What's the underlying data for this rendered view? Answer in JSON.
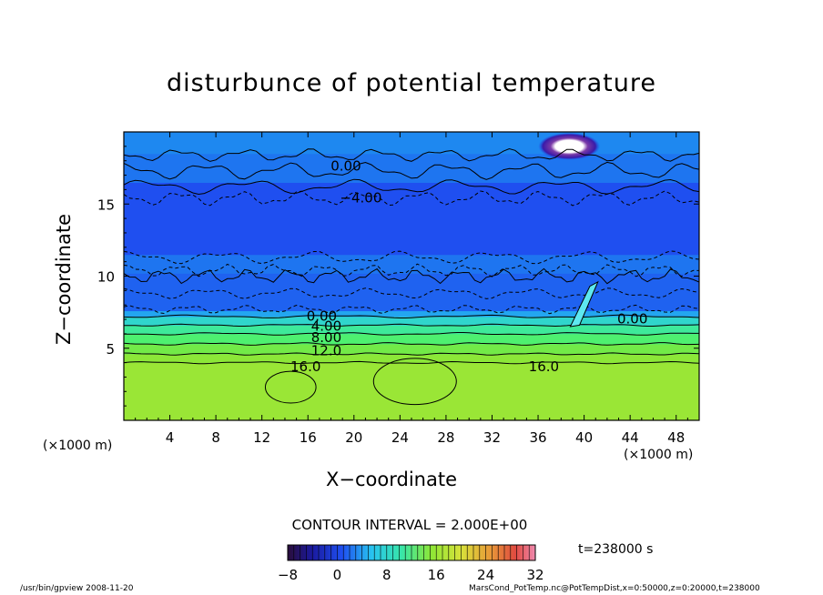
{
  "chart_data": {
    "type": "heatmap",
    "title": "disturbunce of potential temperature",
    "xlabel": "X−coordinate",
    "ylabel": "Z−coordinate",
    "x_unit": "(×1000 m)",
    "z_unit": "(×1000 m)",
    "xlim": [
      0,
      50
    ],
    "ylim": [
      0,
      20
    ],
    "x_ticks": [
      4,
      8,
      12,
      16,
      20,
      24,
      28,
      32,
      36,
      40,
      44,
      48
    ],
    "y_ticks": [
      5,
      10,
      15
    ],
    "contour_interval_text": "CONTOUR INTERVAL = 2.000E+00",
    "contour_labels": [
      {
        "text": "0.00",
        "x": 19.3,
        "z": 17.7
      },
      {
        "text": "−4.00",
        "x": 20.6,
        "z": 15.5
      },
      {
        "text": "0.00",
        "x": 17.2,
        "z": 7.3
      },
      {
        "text": "4.00",
        "x": 17.6,
        "z": 6.6
      },
      {
        "text": "8.00",
        "x": 17.6,
        "z": 5.8
      },
      {
        "text": "12.0",
        "x": 17.6,
        "z": 4.9
      },
      {
        "text": "16.0",
        "x": 15.8,
        "z": 3.8
      },
      {
        "text": "16.0",
        "x": 36.5,
        "z": 3.8
      },
      {
        "text": "0.00",
        "x": 44.2,
        "z": 7.1
      }
    ],
    "field_levels": [
      {
        "z_from": 0,
        "z_to": 4.0,
        "value": 18
      },
      {
        "z_from": 4.0,
        "z_to": 4.6,
        "value": 16
      },
      {
        "z_from": 4.6,
        "z_to": 5.3,
        "value": 13
      },
      {
        "z_from": 5.3,
        "z_to": 6.0,
        "value": 10
      },
      {
        "z_from": 6.0,
        "z_to": 6.6,
        "value": 7
      },
      {
        "z_from": 6.6,
        "z_to": 7.2,
        "value": 4
      },
      {
        "z_from": 7.2,
        "z_to": 7.6,
        "value": 1
      },
      {
        "z_from": 7.6,
        "z_to": 10.2,
        "value": -2
      },
      {
        "z_from": 10.2,
        "z_to": 11.5,
        "value": -1
      },
      {
        "z_from": 11.5,
        "z_to": 16.5,
        "value": -3
      },
      {
        "z_from": 16.5,
        "z_to": 18.5,
        "value": -1
      },
      {
        "z_from": 18.5,
        "z_to": 20,
        "value": 0
      }
    ],
    "colorbar": {
      "ticks": [
        "−8",
        "0",
        "8",
        "16",
        "24",
        "32"
      ],
      "min": -8,
      "max": 32
    },
    "grid": false
  },
  "annotations": {
    "time": "t=238000 s",
    "footer_left": "/usr/bin/gpview   2008-11-20",
    "footer_right": "MarsCond_PotTemp.nc@PotTempDist,x=0:50000,z=0:20000,t=238000"
  }
}
